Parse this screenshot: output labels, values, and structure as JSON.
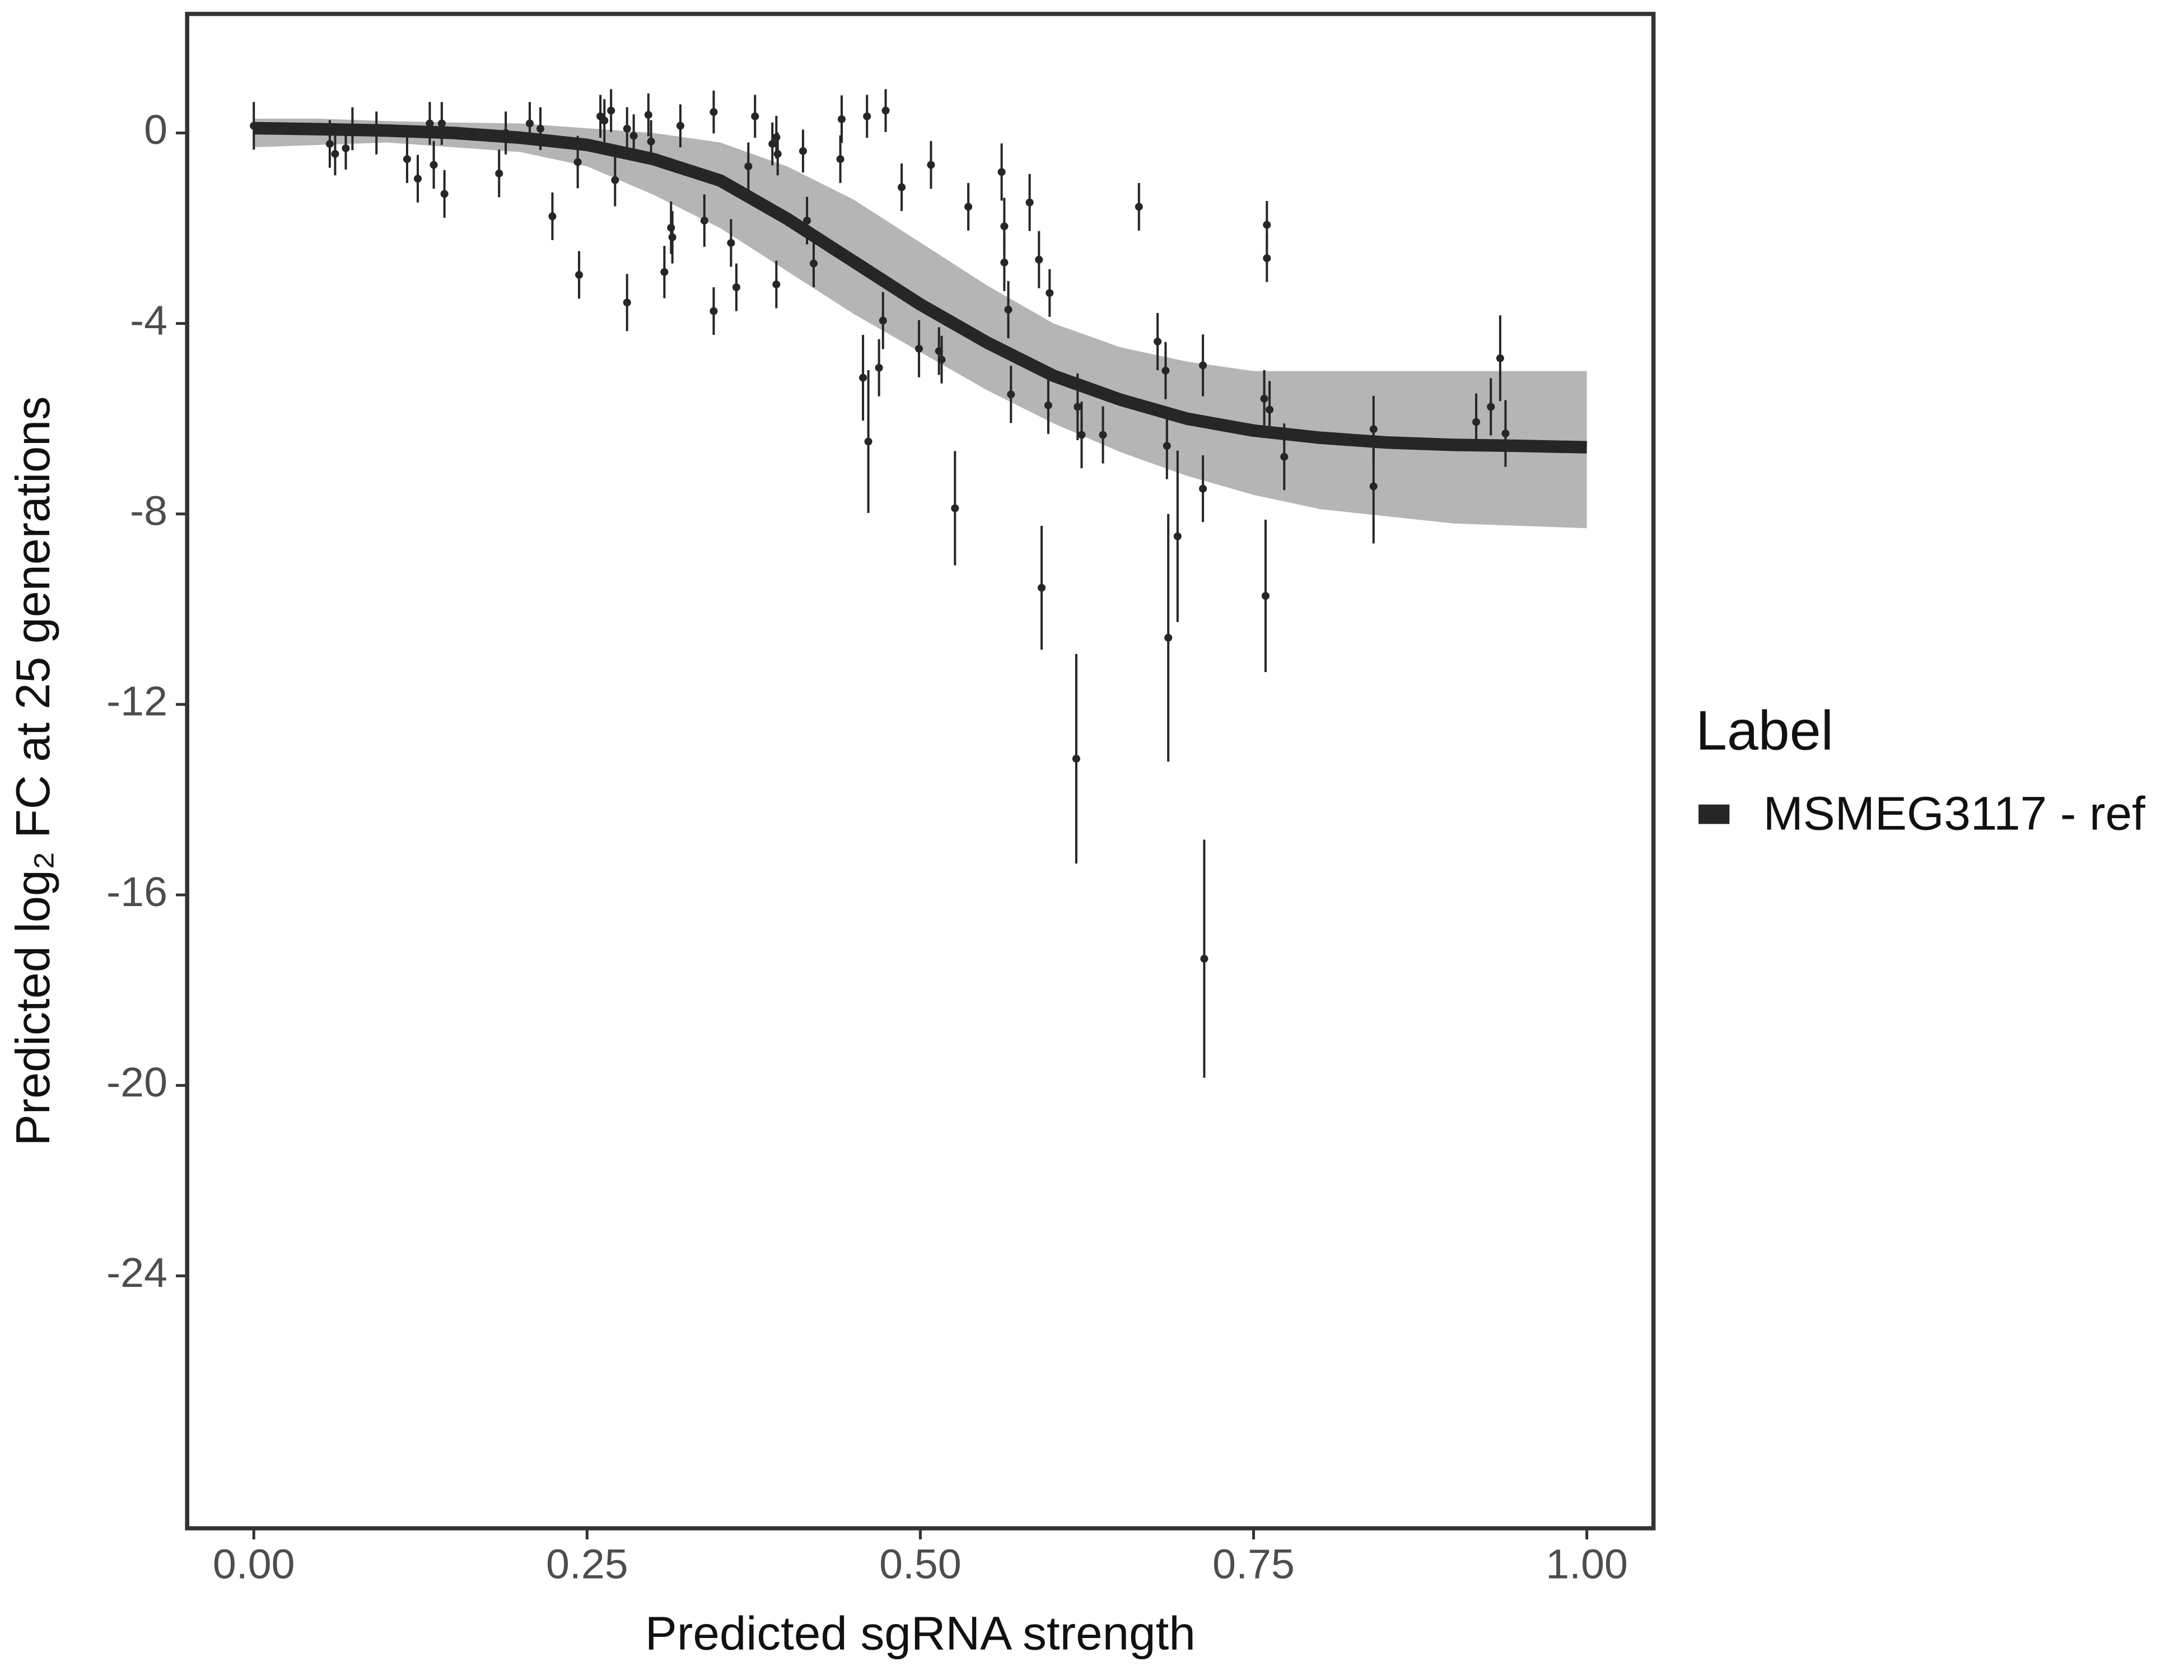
{
  "chart_data": {
    "type": "scatter",
    "x_label": "Predicted sgRNA strength",
    "y_label": "Predicted  log₂ FC at 25 generations",
    "xlim": [
      -0.05,
      1.05
    ],
    "ylim": [
      -29.3,
      2.5
    ],
    "xticks": [
      {
        "value": 0,
        "label": "0.00"
      },
      {
        "value": 0.25,
        "label": "0.25"
      },
      {
        "value": 0.5,
        "label": "0.50"
      },
      {
        "value": 0.75,
        "label": "0.75"
      },
      {
        "value": 1,
        "label": "1.00"
      }
    ],
    "yticks": [
      0,
      -4,
      -8,
      -12,
      -16,
      -20,
      -24
    ],
    "legend_title": "Label",
    "legend_position": "right",
    "series": [
      {
        "name": "MSMEG3117 - ref",
        "color": "#262626",
        "x": [
          0,
          0.05,
          0.1,
          0.15,
          0.2,
          0.25,
          0.3,
          0.35,
          0.4,
          0.45,
          0.5,
          0.55,
          0.6,
          0.65,
          0.7,
          0.75,
          0.8,
          0.85,
          0.9,
          0.95,
          1.0
        ],
        "values": [
          0.1,
          0.08,
          0.05,
          0,
          -0.1,
          -0.25,
          -0.55,
          -1.0,
          -1.8,
          -2.7,
          -3.6,
          -4.4,
          -5.1,
          -5.6,
          -6.0,
          -6.25,
          -6.4,
          -6.5,
          -6.55,
          -6.57,
          -6.6
        ]
      }
    ],
    "band": {
      "color": "#a8a8a8",
      "x": [
        0,
        0.05,
        0.1,
        0.15,
        0.2,
        0.25,
        0.3,
        0.35,
        0.4,
        0.45,
        0.5,
        0.55,
        0.6,
        0.65,
        0.7,
        0.75,
        0.8,
        0.85,
        0.9,
        0.95,
        1.0
      ],
      "upper": [
        0.3,
        0.3,
        0.25,
        0.22,
        0.2,
        0.1,
        0,
        -0.2,
        -0.7,
        -1.4,
        -2.3,
        -3.2,
        -4.0,
        -4.5,
        -4.8,
        -5.0,
        -5.0,
        -5.0,
        -5.0,
        -5.0,
        -5.0
      ],
      "lower": [
        -0.3,
        -0.25,
        -0.2,
        -0.3,
        -0.4,
        -0.7,
        -1.3,
        -2.0,
        -2.9,
        -3.8,
        -4.6,
        -5.4,
        -6.1,
        -6.7,
        -7.2,
        -7.6,
        -7.9,
        -8.05,
        -8.2,
        -8.25,
        -8.3
      ]
    },
    "points": {
      "color": "#262626",
      "x": [
        0.0,
        0.057,
        0.061,
        0.069,
        0.074,
        0.092,
        0.115,
        0.123,
        0.132,
        0.135,
        0.141,
        0.143,
        0.184,
        0.189,
        0.207,
        0.215,
        0.224,
        0.243,
        0.244,
        0.26,
        0.263,
        0.268,
        0.271,
        0.28,
        0.28,
        0.285,
        0.296,
        0.298,
        0.308,
        0.313,
        0.314,
        0.32,
        0.338,
        0.345,
        0.345,
        0.358,
        0.362,
        0.371,
        0.376,
        0.389,
        0.392,
        0.393,
        0.392,
        0.412,
        0.415,
        0.42,
        0.44,
        0.441,
        0.457,
        0.46,
        0.461,
        0.469,
        0.472,
        0.474,
        0.486,
        0.499,
        0.508,
        0.514,
        0.516,
        0.526,
        0.536,
        0.561,
        0.563,
        0.563,
        0.566,
        0.568,
        0.582,
        0.589,
        0.591,
        0.597,
        0.596,
        0.617,
        0.618,
        0.621,
        0.637,
        0.664,
        0.678,
        0.684,
        0.685,
        0.686,
        0.693,
        0.712,
        0.712,
        0.713,
        0.758,
        0.759,
        0.76,
        0.76,
        0.762,
        0.773,
        0.84,
        0.84,
        0.917,
        0.928,
        0.935,
        0.939
      ],
      "values": [
        0.15,
        -0.23,
        -0.44,
        -0.32,
        0.09,
        0,
        -0.55,
        -0.96,
        0.2,
        -0.67,
        0.2,
        -1.28,
        -0.85,
        0,
        0.2,
        0.09,
        -1.75,
        -0.61,
        -2.98,
        0.35,
        0.26,
        0.47,
        -0.99,
        0.09,
        -3.56,
        -0.06,
        0.38,
        -0.18,
        -2.92,
        -1.99,
        -2.19,
        0.15,
        -1.84,
        0.44,
        -3.74,
        -2.31,
        -3.24,
        -0.7,
        0.35,
        -0.23,
        -0.09,
        -0.44,
        -3.18,
        -0.38,
        -1.84,
        -2.74,
        -0.55,
        0.29,
        -5.14,
        0.35,
        -6.48,
        -4.93,
        -3.94,
        0.47,
        -1.14,
        -4.53,
        -0.67,
        -4.58,
        -4.76,
        -7.88,
        -1.55,
        -0.82,
        -1.96,
        -2.72,
        -3.71,
        -5.49,
        -1.46,
        -2.66,
        -9.55,
        -3.36,
        -5.72,
        -13.14,
        -5.75,
        -6.34,
        -6.34,
        -1.55,
        -4.38,
        -4.99,
        -6.57,
        -10.6,
        -8.47,
        -4.88,
        -7.47,
        -17.34,
        -5.58,
        -9.72,
        -1.93,
        -2.63,
        -5.81,
        -6.8,
        -6.22,
        -7.42,
        -6.07,
        -5.75,
        -4.73,
        -6.31
      ],
      "errors": [
        0.5,
        0.5,
        0.45,
        0.45,
        0.45,
        0.45,
        0.5,
        0.5,
        0.45,
        0.5,
        0.45,
        0.5,
        0.5,
        0.45,
        0.45,
        0.45,
        0.5,
        0.55,
        0.5,
        0.45,
        0.45,
        0.45,
        0.55,
        0.45,
        0.6,
        0.45,
        0.45,
        0.45,
        0.55,
        0.55,
        0.55,
        0.45,
        0.55,
        0.45,
        0.5,
        0.5,
        0.5,
        0.5,
        0.45,
        0.45,
        0.45,
        0.45,
        0.5,
        0.45,
        0.5,
        0.5,
        0.5,
        0.5,
        0.9,
        0.45,
        1.5,
        0.6,
        0.6,
        0.45,
        0.5,
        0.6,
        0.5,
        0.5,
        0.5,
        1.2,
        0.5,
        0.6,
        0.6,
        0.6,
        0.6,
        0.6,
        0.6,
        0.6,
        1.3,
        0.5,
        0.6,
        2.2,
        0.7,
        0.7,
        0.6,
        0.5,
        0.6,
        0.6,
        0.7,
        2.6,
        1.8,
        0.65,
        0.7,
        2.5,
        0.6,
        1.6,
        0.5,
        0.5,
        0.6,
        0.7,
        0.7,
        1.2,
        0.6,
        0.6,
        0.9,
        0.7
      ]
    }
  }
}
